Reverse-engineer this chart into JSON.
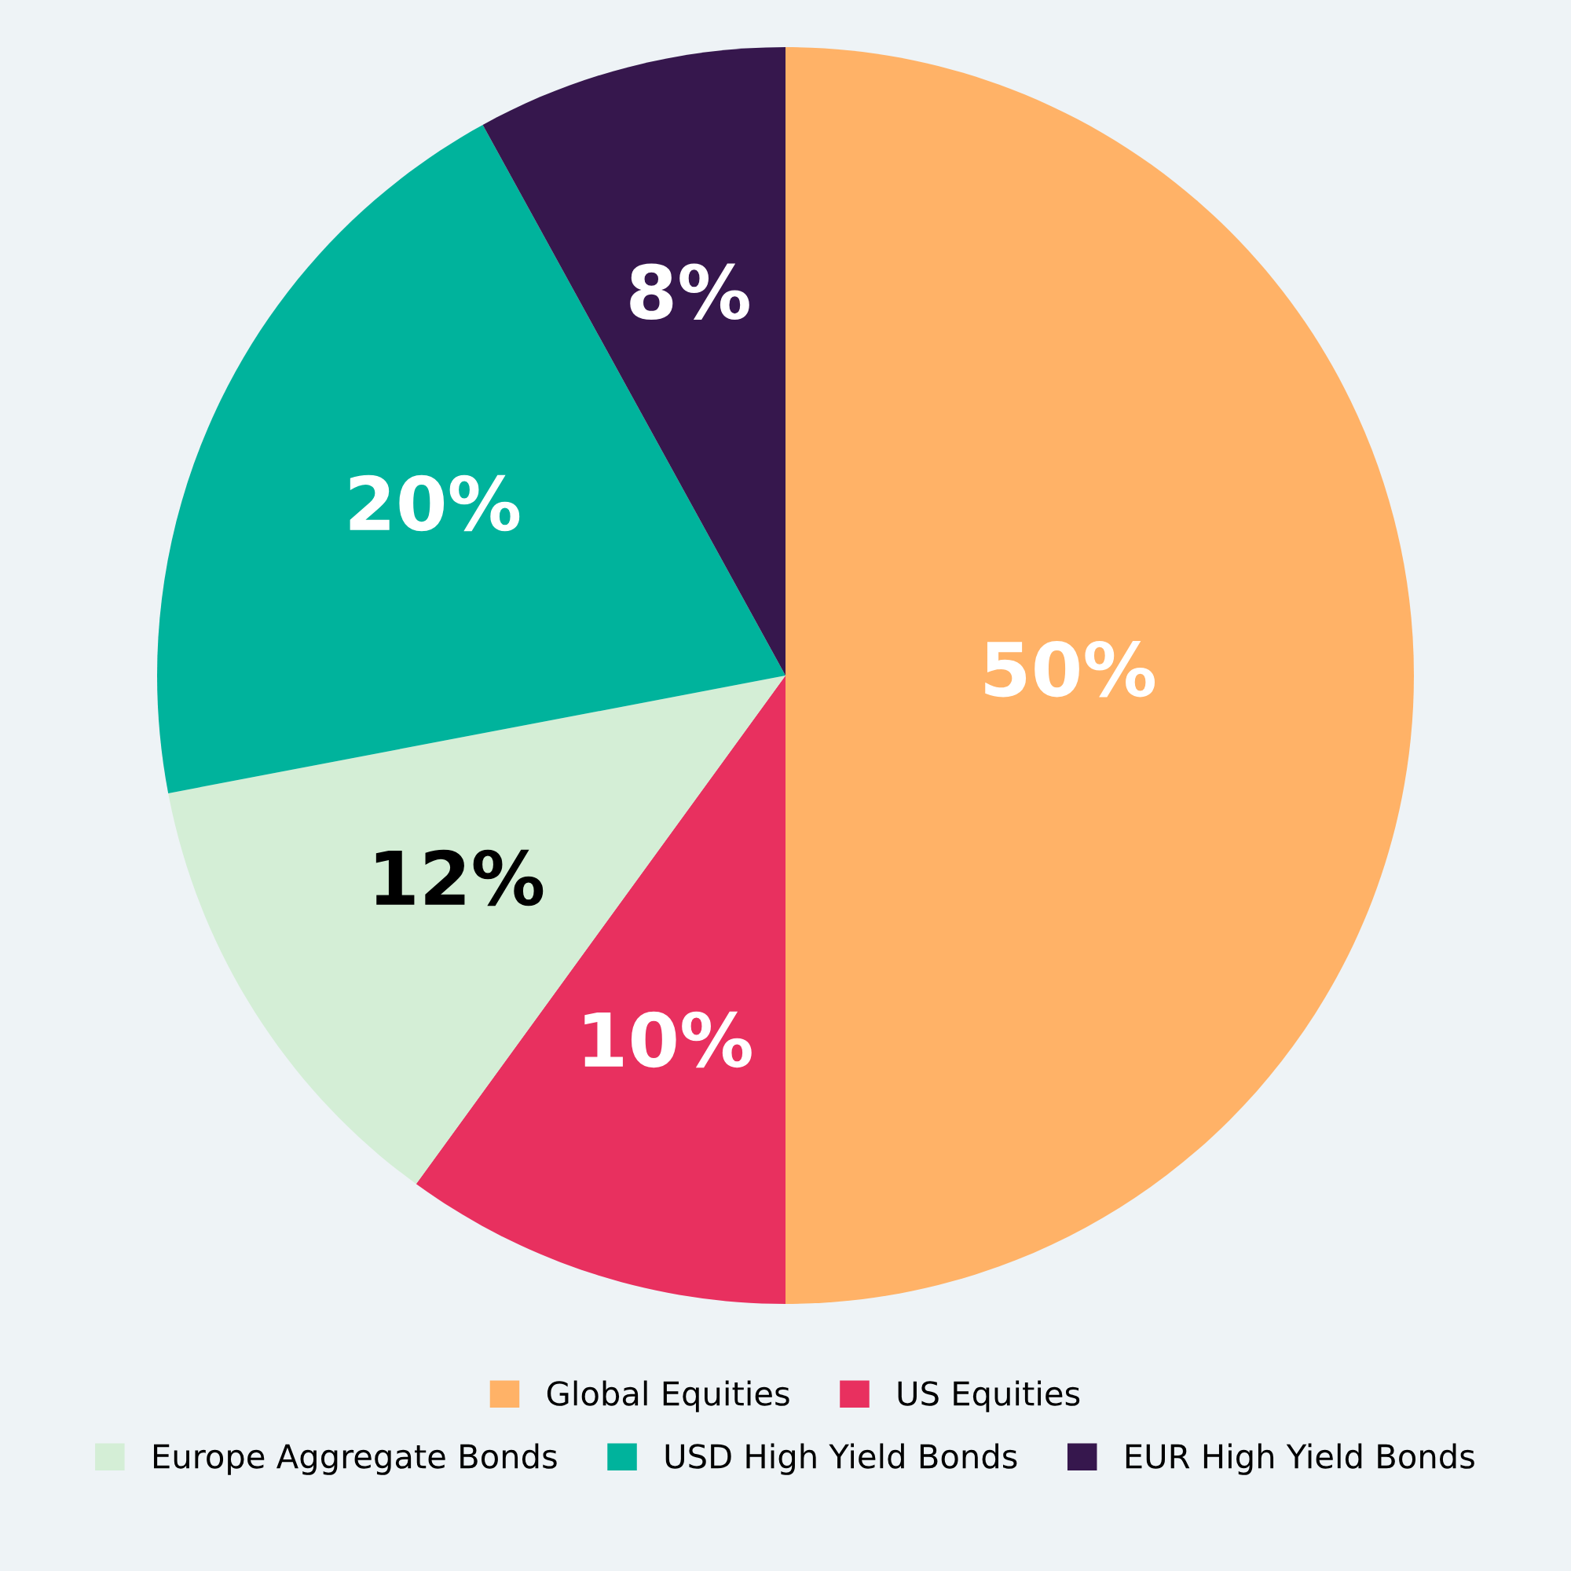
{
  "chart_data": {
    "type": "pie",
    "categories": [
      "Global Equities",
      "US Equities",
      "Europe Aggregate Bonds",
      "USD High Yield Bonds",
      "EUR High Yield Bonds"
    ],
    "values": [
      50,
      10,
      12,
      20,
      8
    ],
    "colors": [
      "#ffb267",
      "#e8305f",
      "#d4eed6",
      "#00b39c",
      "#36174d"
    ],
    "value_labels": [
      "50%",
      "10%",
      "12%",
      "20%",
      "8%"
    ],
    "legend": "bottom"
  }
}
